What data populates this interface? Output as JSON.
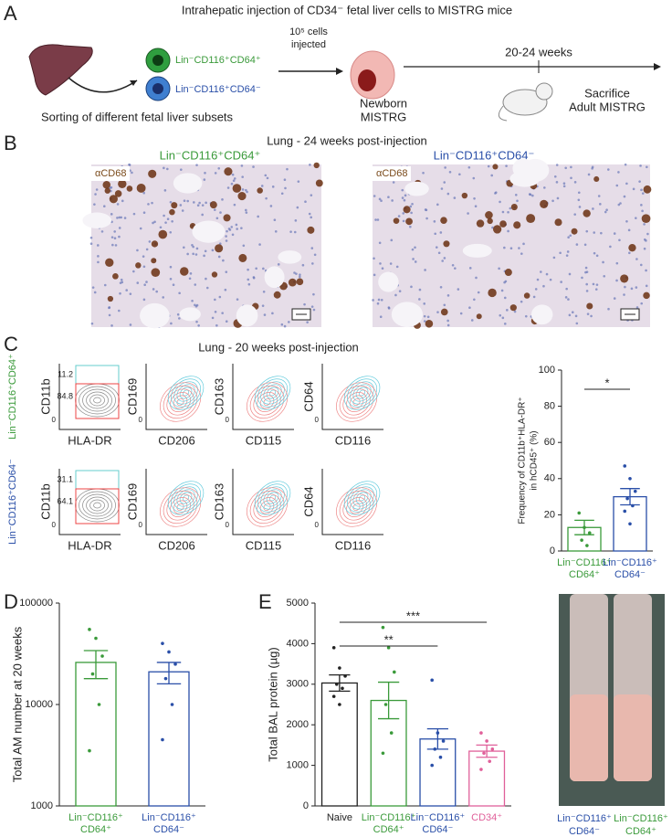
{
  "panel_letters": [
    "A",
    "B",
    "C",
    "D",
    "E"
  ],
  "panel_a": {
    "title": "Intrahepatic injection of CD34⁻ fetal liver cells to MISTRG mice",
    "subset_green": "Lin⁻CD116⁺CD64⁺",
    "subset_blue": "Lin⁻CD116⁺CD64⁻",
    "sorting": "Sorting of different fetal liver subsets",
    "injected": [
      "10⁵ cells",
      "injected"
    ],
    "newborn": [
      "Newborn",
      "MISTRG"
    ],
    "weeks": "20-24 weeks",
    "sacrifice": [
      "Sacrifice",
      "Adult MISTRG"
    ]
  },
  "panel_b": {
    "title": "Lung - 24 weeks post-injection",
    "labels": [
      "Lin⁻CD116⁺CD64⁺",
      "Lin⁻CD116⁺CD64⁻"
    ],
    "stain": "αCD68"
  },
  "panel_c": {
    "title": "Lung - 20 weeks post-injection",
    "row_labels": [
      "Lin⁻CD116⁺CD64⁺",
      "Lin⁻CD116⁺CD64⁻"
    ],
    "zero": "0",
    "plots": [
      {
        "x": "HLA-DR",
        "y": "CD11b"
      },
      {
        "x": "CD206",
        "y": "CD169"
      },
      {
        "x": "CD115",
        "y": "CD163"
      },
      {
        "x": "CD116",
        "y": "CD64"
      }
    ],
    "gates": [
      [
        "11.2",
        "84.8"
      ],
      [
        "31.1",
        "64.1"
      ]
    ]
  },
  "panel_e_photo": {
    "labels": [
      [
        "Lin⁻CD116⁺",
        "CD64⁻"
      ],
      [
        "Lin⁻CD116⁺",
        "CD64⁺"
      ]
    ]
  },
  "chart_data": [
    {
      "type": "bar",
      "ylabel": [
        "Frequency of CD11b⁺HLA-DR⁺",
        "in hCD45⁺ (%)"
      ],
      "categories": [
        [
          "Lin⁻CD116⁺",
          "CD64⁺"
        ],
        [
          "Lin⁻CD116⁺",
          "CD64⁻"
        ]
      ],
      "colors": [
        "#3a9a3a",
        "#2a4fa8"
      ],
      "values": [
        13,
        30
      ],
      "errors": [
        4,
        4.5
      ],
      "points": [
        [
          21,
          13,
          10,
          6,
          3
        ],
        [
          47,
          40,
          33,
          29,
          25,
          22,
          15
        ]
      ],
      "ylim": [
        0,
        100
      ],
      "yticks": [
        0,
        20,
        40,
        60,
        80,
        100
      ],
      "significance": [
        {
          "from": 0,
          "to": 1,
          "label": "*"
        }
      ]
    },
    {
      "type": "bar",
      "log": true,
      "ylabel": [
        "Total AM number at 20 weeks"
      ],
      "categories": [
        [
          "Lin⁻CD116⁺",
          "CD64⁺"
        ],
        [
          "Lin⁻CD116⁺",
          "CD64⁻"
        ]
      ],
      "colors": [
        "#3a9a3a",
        "#2a4fa8"
      ],
      "values": [
        26000,
        21000
      ],
      "errors": [
        8000,
        5000
      ],
      "points": [
        [
          55000,
          45000,
          30000,
          20000,
          10000,
          3500
        ],
        [
          40000,
          33000,
          25000,
          18000,
          10000,
          4500
        ]
      ],
      "ylim": [
        1000,
        100000
      ],
      "yticks": [
        1000,
        10000,
        100000
      ],
      "significance": []
    },
    {
      "type": "bar",
      "ylabel": [
        "Total BAL protein (µg)"
      ],
      "categories": [
        [
          "Naive"
        ],
        [
          "Lin⁻CD116⁺",
          "CD64⁺"
        ],
        [
          "Lin⁻CD116⁺",
          "CD64⁻"
        ],
        [
          "CD34⁺"
        ]
      ],
      "colors": [
        "#222222",
        "#3a9a3a",
        "#2a4fa8",
        "#e0609a"
      ],
      "values": [
        3030,
        2600,
        1650,
        1350
      ],
      "errors": [
        200,
        450,
        250,
        150
      ],
      "points": [
        [
          3900,
          3400,
          3200,
          3000,
          2900,
          2700,
          2500
        ],
        [
          4400,
          3900,
          3300,
          2500,
          1800,
          1300
        ],
        [
          3100,
          1800,
          1600,
          1400,
          1200,
          1000
        ],
        [
          1800,
          1600,
          1400,
          1300,
          1100,
          900
        ]
      ],
      "ylim": [
        0,
        5000
      ],
      "yticks": [
        0,
        1000,
        2000,
        3000,
        4000,
        5000
      ],
      "significance": [
        {
          "from": 0,
          "to": 2,
          "label": "**"
        },
        {
          "from": 0,
          "to": 3,
          "label": "***"
        }
      ]
    }
  ]
}
